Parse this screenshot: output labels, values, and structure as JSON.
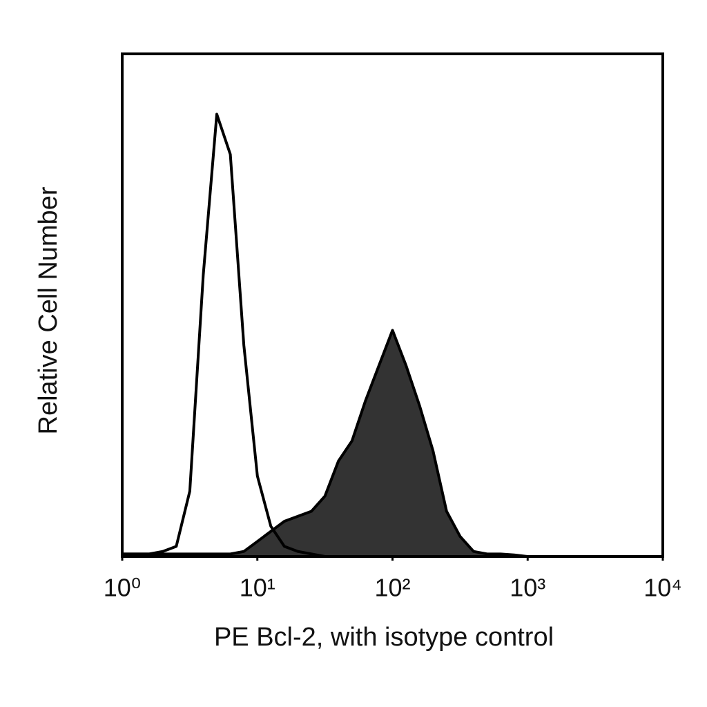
{
  "chart_data": {
    "type": "histogram-overlay",
    "xlabel": "PE Bcl-2, with isotype control",
    "ylabel": "Relative Cell Number",
    "log_x": true,
    "xlim": [
      1,
      10000
    ],
    "xticks": [
      {
        "value": 1,
        "label": "10⁰"
      },
      {
        "value": 10,
        "label": "10¹"
      },
      {
        "value": 100,
        "label": "10²"
      },
      {
        "value": 1000,
        "label": "10³"
      },
      {
        "value": 10000,
        "label": "10⁴"
      }
    ],
    "ylim": [
      0,
      100
    ],
    "x": [
      1,
      1.259,
      1.585,
      1.995,
      2.512,
      3.162,
      3.981,
      5.012,
      6.31,
      7.943,
      10,
      12.59,
      15.85,
      19.95,
      25.12,
      31.62,
      39.81,
      50.12,
      63.1,
      79.43,
      100,
      125.9,
      158.5,
      199.5,
      251.2,
      316.2,
      398.1,
      501.2,
      631,
      794.3,
      1000
    ],
    "series": [
      {
        "color": "#333333",
        "filled": true,
        "values": [
          0.5,
          0.5,
          0.5,
          0.5,
          0.5,
          0.5,
          0.5,
          0.5,
          0.5,
          1,
          3,
          5,
          7,
          8,
          9,
          12,
          19,
          23,
          31,
          38,
          45,
          38,
          30,
          21,
          9,
          4,
          1,
          0.5,
          0.5,
          0.3,
          0
        ]
      },
      {
        "color": "#000000",
        "filled": false,
        "values": [
          0.5,
          0.5,
          0.5,
          1,
          2,
          13,
          56,
          88,
          80,
          42,
          16,
          6,
          2,
          1,
          0.5,
          0,
          0,
          0,
          0,
          0,
          0,
          0,
          0,
          0,
          0,
          0,
          0,
          0,
          0,
          0,
          0
        ]
      }
    ]
  }
}
